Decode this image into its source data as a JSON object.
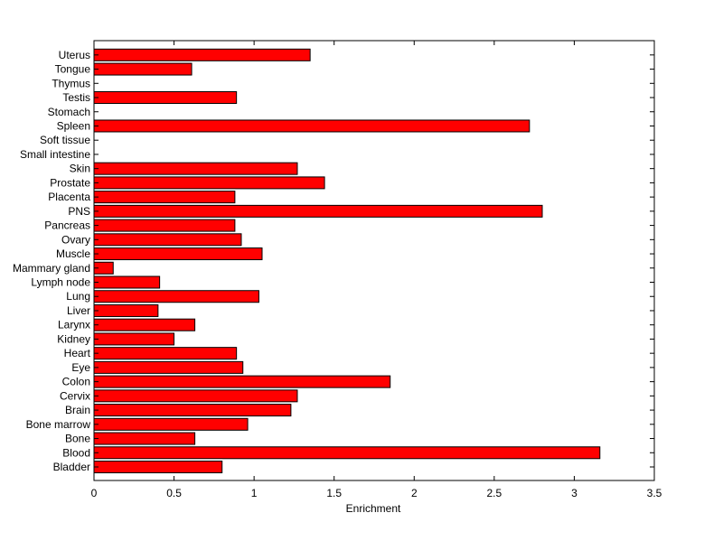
{
  "chart_data": {
    "type": "bar",
    "orientation": "horizontal",
    "categories": [
      "Bladder",
      "Blood",
      "Bone",
      "Bone marrow",
      "Brain",
      "Cervix",
      "Colon",
      "Eye",
      "Heart",
      "Kidney",
      "Larynx",
      "Liver",
      "Lung",
      "Lymph node",
      "Mammary gland",
      "Muscle",
      "Ovary",
      "Pancreas",
      "PNS",
      "Placenta",
      "Prostate",
      "Skin",
      "Small intestine",
      "Soft tissue",
      "Spleen",
      "Stomach",
      "Testis",
      "Thymus",
      "Tongue",
      "Uterus"
    ],
    "values": [
      0.8,
      3.16,
      0.63,
      0.96,
      1.23,
      1.27,
      1.85,
      0.93,
      0.89,
      0.5,
      0.63,
      0.4,
      1.03,
      0.41,
      0.12,
      1.05,
      0.92,
      0.88,
      2.8,
      0.88,
      1.44,
      1.27,
      0,
      0,
      2.72,
      0,
      0.89,
      0,
      0.61,
      1.35
    ],
    "title": "",
    "xlabel": "Enrichment",
    "ylabel": "",
    "xlim": [
      0,
      3.5
    ],
    "xticks": [
      "0",
      "0.5",
      "1",
      "1.5",
      "2",
      "2.5",
      "3",
      "3.5"
    ],
    "grid": false,
    "colors": {
      "bar": "#ff0000",
      "edge": "#000000"
    }
  }
}
